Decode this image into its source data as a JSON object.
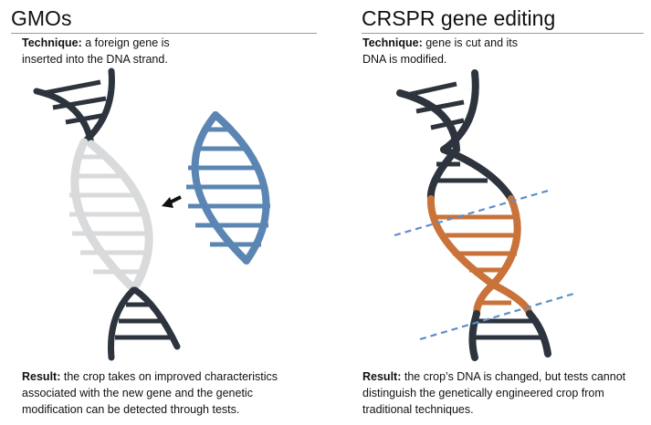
{
  "left": {
    "title": "GMOs",
    "technique_label": "Technique:",
    "technique_lines": [
      "a foreign gene is",
      "inserted into the DNA strand."
    ],
    "result_label": "Result:",
    "result_lines": [
      "the crop takes on improved characteristics",
      "associated with the new gene and the genetic",
      "modification can be detected through tests."
    ]
  },
  "right": {
    "title": "CRSPR gene editing",
    "technique_label": "Technique:",
    "technique_lines": [
      "gene is cut and its",
      "DNA is modified."
    ],
    "result_label": "Result:",
    "result_lines": [
      "the crop’s DNA is changed, but tests cannot",
      "distinguish the genetically engineered crop from",
      "traditional techniques."
    ]
  },
  "colors": {
    "dna_dark": "#2d343d",
    "dna_host": "#d9dadc",
    "dna_foreign": "#5b86b3",
    "dna_edited": "#c9733a",
    "cut_line": "#5b8fc8",
    "arrow": "#111111"
  }
}
